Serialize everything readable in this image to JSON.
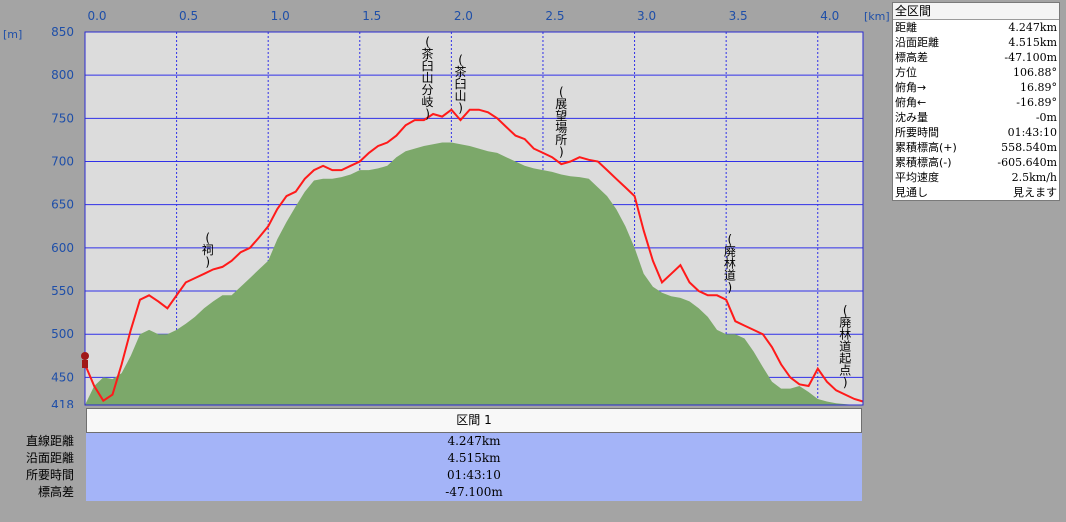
{
  "chart_data": {
    "type": "area",
    "xlabel": "",
    "ylabel": "",
    "x_unit_label": "[km]",
    "y_unit_label": "[m]",
    "xlim": [
      0,
      4.247
    ],
    "ylim": [
      418,
      850
    ],
    "x_ticks": [
      "0.0",
      "0.5",
      "1.0",
      "1.5",
      "2.0",
      "2.5",
      "3.0",
      "3.5",
      "4.0"
    ],
    "y_ticks": [
      "850",
      "800",
      "750",
      "700",
      "650",
      "600",
      "550",
      "500",
      "450",
      "418"
    ],
    "series": [
      {
        "name": "",
        "color": "#ff1a1a",
        "x": [
          0.0,
          0.05,
          0.1,
          0.15,
          0.2,
          0.25,
          0.3,
          0.35,
          0.4,
          0.45,
          0.5,
          0.55,
          0.6,
          0.65,
          0.7,
          0.75,
          0.8,
          0.85,
          0.9,
          0.95,
          1.0,
          1.05,
          1.1,
          1.15,
          1.2,
          1.25,
          1.3,
          1.35,
          1.4,
          1.45,
          1.5,
          1.55,
          1.6,
          1.65,
          1.7,
          1.75,
          1.8,
          1.85,
          1.9,
          1.95,
          2.0,
          2.05,
          2.1,
          2.15,
          2.2,
          2.25,
          2.3,
          2.35,
          2.4,
          2.45,
          2.5,
          2.55,
          2.6,
          2.65,
          2.7,
          2.75,
          2.8,
          2.85,
          2.9,
          2.95,
          3.0,
          3.05,
          3.1,
          3.15,
          3.2,
          3.25,
          3.3,
          3.35,
          3.4,
          3.45,
          3.5,
          3.55,
          3.6,
          3.65,
          3.7,
          3.75,
          3.8,
          3.85,
          3.9,
          3.95,
          4.0,
          4.05,
          4.1,
          4.15,
          4.2,
          4.247
        ],
        "values": [
          465,
          440,
          423,
          430,
          465,
          505,
          540,
          545,
          538,
          530,
          545,
          560,
          565,
          570,
          575,
          578,
          585,
          595,
          600,
          612,
          625,
          645,
          660,
          665,
          680,
          690,
          695,
          690,
          690,
          695,
          700,
          710,
          718,
          722,
          730,
          742,
          748,
          748,
          755,
          752,
          760,
          748,
          760,
          760,
          757,
          750,
          740,
          730,
          726,
          715,
          710,
          705,
          697,
          700,
          705,
          702,
          700,
          690,
          680,
          670,
          660,
          620,
          585,
          560,
          570,
          580,
          560,
          550,
          545,
          545,
          540,
          515,
          510,
          505,
          500,
          485,
          465,
          450,
          442,
          440,
          460,
          445,
          435,
          430,
          425,
          422
        ],
        "terrain": [
          418,
          440,
          450,
          448,
          455,
          475,
          500,
          505,
          500,
          500,
          505,
          512,
          520,
          530,
          538,
          545,
          545,
          555,
          565,
          575,
          585,
          610,
          630,
          648,
          665,
          678,
          680,
          680,
          682,
          685,
          690,
          690,
          692,
          695,
          705,
          712,
          715,
          718,
          720,
          722,
          722,
          720,
          718,
          715,
          712,
          710,
          705,
          700,
          695,
          692,
          690,
          688,
          685,
          683,
          682,
          680,
          670,
          660,
          645,
          625,
          600,
          570,
          555,
          548,
          544,
          542,
          538,
          530,
          520,
          505,
          500,
          500,
          495,
          480,
          462,
          445,
          437,
          437,
          440,
          433,
          425,
          422,
          420,
          419,
          418,
          418
        ]
      }
    ],
    "annotations": [
      {
        "text": "(茶臼山分岐)",
        "x": 1.87
      },
      {
        "text": "(茶臼山)",
        "x": 2.05
      },
      {
        "text": "(展望場所)",
        "x": 2.6
      },
      {
        "text": "(祠)",
        "x": 0.67
      },
      {
        "text": "(廃林道)",
        "x": 3.52
      },
      {
        "text": "(廃林道起点)",
        "x": 4.15
      }
    ],
    "grid": true,
    "colors": {
      "background": "#a4a4a4",
      "plot_bg": "#dcdcdc",
      "terrain": "#7ca86a",
      "profile": "#ff1a1a",
      "grid": "#3030e8",
      "axis_text": "#1f4fa8"
    }
  },
  "panel": {
    "title": "全区間",
    "rows": [
      {
        "label": "距離",
        "value": "4.247km"
      },
      {
        "label": "沿面距離",
        "value": "4.515km"
      },
      {
        "label": "標高差",
        "value": "-47.100m"
      },
      {
        "label": "方位",
        "value": "106.88°"
      },
      {
        "label": "俯角→",
        "value": "16.89°"
      },
      {
        "label": "俯角←",
        "value": "-16.89°"
      },
      {
        "label": "沈み量",
        "value": "-0m"
      },
      {
        "label": "所要時間",
        "value": "01:43:10"
      },
      {
        "label": "累積標高(+)",
        "value": "558.540m"
      },
      {
        "label": "累積標高(-)",
        "value": "-605.640m"
      },
      {
        "label": "平均速度",
        "value": "2.5km/h"
      },
      {
        "label": "見通し",
        "value": "見えます"
      }
    ]
  },
  "section": {
    "title": "区間 1"
  },
  "summary": [
    {
      "label": "直線距離",
      "value": "4.247km"
    },
    {
      "label": "沿面距離",
      "value": "4.515km"
    },
    {
      "label": "所要時間",
      "value": "01:43:10"
    },
    {
      "label": "標高差",
      "value": "-47.100m"
    }
  ]
}
